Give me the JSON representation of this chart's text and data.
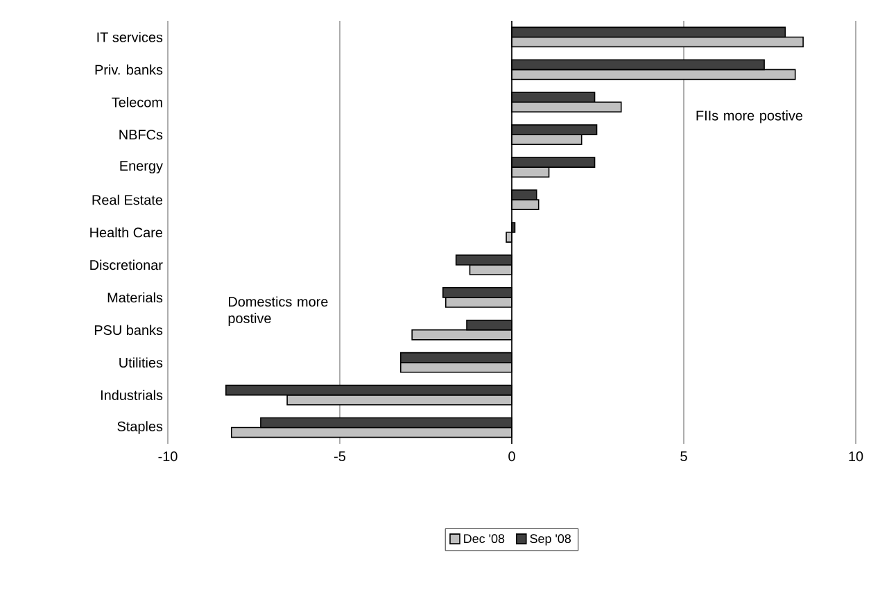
{
  "chart_data": {
    "type": "bar",
    "orientation": "horizontal",
    "categories": [
      "IT services",
      "Priv. banks",
      "Telecom",
      "NBFCs",
      "Energy",
      "Real Estate",
      "Health Care",
      "Discretionar",
      "Materials",
      "PSU banks",
      "Utilities",
      "Industrials",
      "Staples"
    ],
    "series": [
      {
        "name": "Dec '08",
        "color": "#c0c0c0",
        "values": [
          8.47,
          8.24,
          3.18,
          2.03,
          1.08,
          0.78,
          -0.16,
          -1.22,
          -1.92,
          -2.9,
          -3.23,
          -6.53,
          -8.15
        ]
      },
      {
        "name": "Sep '08",
        "color": "#404040",
        "values": [
          7.95,
          7.34,
          2.41,
          2.47,
          2.41,
          0.72,
          0.09,
          -1.62,
          -2.0,
          -1.31,
          -3.23,
          -8.31,
          -7.3
        ]
      }
    ],
    "xlim": [
      -10,
      10
    ],
    "xticks": [
      -10,
      -5,
      0,
      5,
      10
    ],
    "grid": "x",
    "legend": "bottom",
    "annotations": [
      "FIIs more postive",
      "Domestics more postive"
    ]
  }
}
